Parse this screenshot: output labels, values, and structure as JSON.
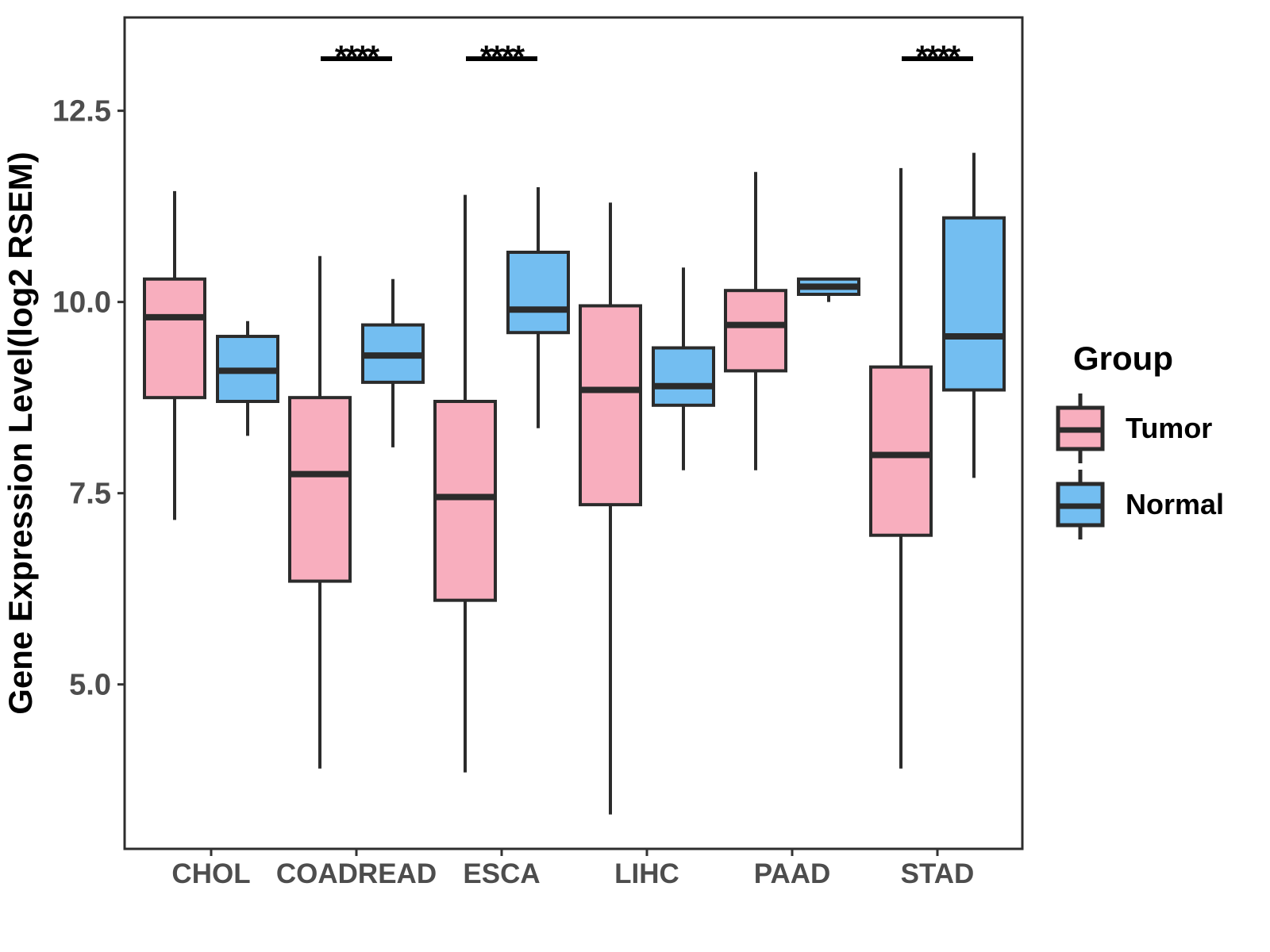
{
  "figure": {
    "legend": {
      "title": "Group",
      "entries": [
        {
          "label": "Tumor",
          "color": "#F8AEBE"
        },
        {
          "label": "Normal",
          "color": "#73BEF1"
        }
      ]
    }
  },
  "chart_data": {
    "type": "boxplot",
    "title": "",
    "xlabel": "",
    "ylabel": "Gene Expression Level(log2 RSEM)",
    "categories": [
      "CHOL",
      "COADREAD",
      "ESCA",
      "LIHC",
      "PAAD",
      "STAD"
    ],
    "y_ticks": [
      5.0,
      7.5,
      10.0,
      12.5
    ],
    "y_tick_labels": [
      "5.0",
      "7.5",
      "10.0",
      "12.5"
    ],
    "ylim": [
      2.85,
      13.72
    ],
    "grid": false,
    "legend_position": "right",
    "colors": {
      "tumor_fill": "#F8AEBE",
      "normal_fill": "#73BEF1",
      "box_border": "#2B2B2B",
      "median_line": "#2B2B2B",
      "axis_text": "#4D4D4D",
      "panel_border": "#2D2D2D",
      "annotation": "#000000"
    },
    "series": [
      {
        "name": "Tumor",
        "color": "#F8AEBE",
        "boxes": [
          {
            "category": "CHOL",
            "whisker_low": 7.15,
            "q1": 8.75,
            "median": 9.8,
            "q3": 10.3,
            "whisker_high": 11.45
          },
          {
            "category": "COADREAD",
            "whisker_low": 3.9,
            "q1": 6.35,
            "median": 7.75,
            "q3": 8.75,
            "whisker_high": 10.6
          },
          {
            "category": "ESCA",
            "whisker_low": 3.85,
            "q1": 6.1,
            "median": 7.45,
            "q3": 8.7,
            "whisker_high": 11.4
          },
          {
            "category": "LIHC",
            "whisker_low": 3.3,
            "q1": 7.35,
            "median": 8.85,
            "q3": 9.95,
            "whisker_high": 11.3
          },
          {
            "category": "PAAD",
            "whisker_low": 7.8,
            "q1": 9.1,
            "median": 9.7,
            "q3": 10.15,
            "whisker_high": 11.7
          },
          {
            "category": "STAD",
            "whisker_low": 3.9,
            "q1": 6.95,
            "median": 8.0,
            "q3": 9.15,
            "whisker_high": 11.75
          }
        ]
      },
      {
        "name": "Normal",
        "color": "#73BEF1",
        "boxes": [
          {
            "category": "CHOL",
            "whisker_low": 8.25,
            "q1": 8.7,
            "median": 9.1,
            "q3": 9.55,
            "whisker_high": 9.75
          },
          {
            "category": "COADREAD",
            "whisker_low": 8.1,
            "q1": 8.95,
            "median": 9.3,
            "q3": 9.7,
            "whisker_high": 10.3
          },
          {
            "category": "ESCA",
            "whisker_low": 8.35,
            "q1": 9.6,
            "median": 9.9,
            "q3": 10.65,
            "whisker_high": 11.5
          },
          {
            "category": "LIHC",
            "whisker_low": 7.8,
            "q1": 8.65,
            "median": 8.9,
            "q3": 9.4,
            "whisker_high": 10.45
          },
          {
            "category": "PAAD",
            "whisker_low": 10.0,
            "q1": 10.1,
            "median": 10.2,
            "q3": 10.3,
            "whisker_high": 10.3
          },
          {
            "category": "STAD",
            "whisker_low": 7.7,
            "q1": 8.85,
            "median": 9.55,
            "q3": 11.1,
            "whisker_high": 11.95
          }
        ]
      }
    ],
    "annotations": [
      {
        "category": "COADREAD",
        "label": "****"
      },
      {
        "category": "ESCA",
        "label": "****"
      },
      {
        "category": "STAD",
        "label": "****"
      }
    ]
  }
}
